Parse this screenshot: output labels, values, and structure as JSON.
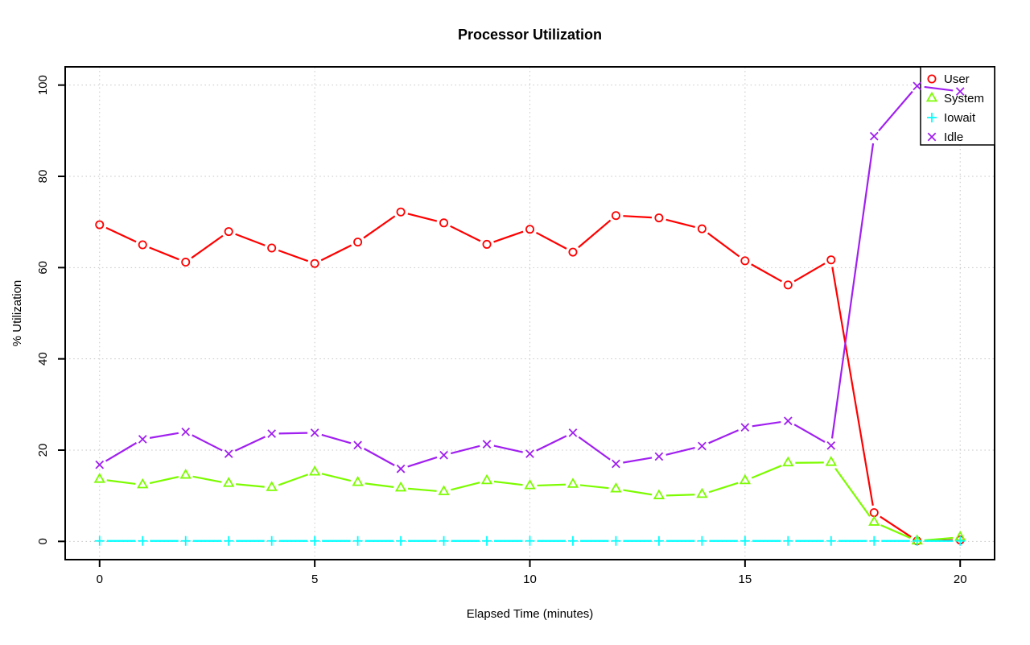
{
  "chart_data": {
    "type": "line",
    "title": "Processor Utilization",
    "xlabel": "Elapsed Time (minutes)",
    "ylabel": "% Utilization",
    "x": [
      0,
      1,
      2,
      3,
      4,
      5,
      6,
      7,
      8,
      9,
      10,
      11,
      12,
      13,
      14,
      15,
      16,
      17,
      18,
      19,
      20
    ],
    "xticks": [
      0,
      5,
      10,
      15,
      20
    ],
    "yticks": [
      0,
      20,
      40,
      60,
      80,
      100
    ],
    "xlim": [
      -0.8,
      20.8
    ],
    "ylim": [
      -4,
      104
    ],
    "grid": true,
    "grid_style": "dotted",
    "grid_color": "#c6c6c6",
    "legend_position": "top-right",
    "axis_color": "#000000",
    "series": [
      {
        "name": "User",
        "color": "#ff0000",
        "marker": "circle",
        "values": [
          69.4,
          65.0,
          61.2,
          67.9,
          64.3,
          60.9,
          65.6,
          72.2,
          69.8,
          65.1,
          68.4,
          63.4,
          71.4,
          70.9,
          68.5,
          61.5,
          56.2,
          61.7,
          6.3,
          0.1,
          0.3
        ]
      },
      {
        "name": "System",
        "color": "#7cfc00",
        "marker": "triangle",
        "values": [
          13.6,
          12.4,
          14.5,
          12.7,
          11.8,
          15.2,
          12.9,
          11.7,
          10.9,
          13.3,
          12.2,
          12.5,
          11.5,
          10.0,
          10.3,
          13.3,
          17.2,
          17.3,
          4.2,
          0.1,
          0.9
        ]
      },
      {
        "name": "Iowait",
        "color": "#00ffff",
        "marker": "plus",
        "values": [
          0.1,
          0.1,
          0.1,
          0.1,
          0.1,
          0.1,
          0.1,
          0.1,
          0.1,
          0.1,
          0.1,
          0.1,
          0.1,
          0.1,
          0.1,
          0.1,
          0.1,
          0.1,
          0.1,
          0.1,
          0.1
        ]
      },
      {
        "name": "Idle",
        "color": "#a020f0",
        "marker": "x",
        "values": [
          16.8,
          22.4,
          24.0,
          19.2,
          23.6,
          23.8,
          21.1,
          15.9,
          18.9,
          21.3,
          19.2,
          23.8,
          17.0,
          18.6,
          20.9,
          25.0,
          26.4,
          21.0,
          88.8,
          99.8,
          98.6
        ]
      }
    ]
  }
}
